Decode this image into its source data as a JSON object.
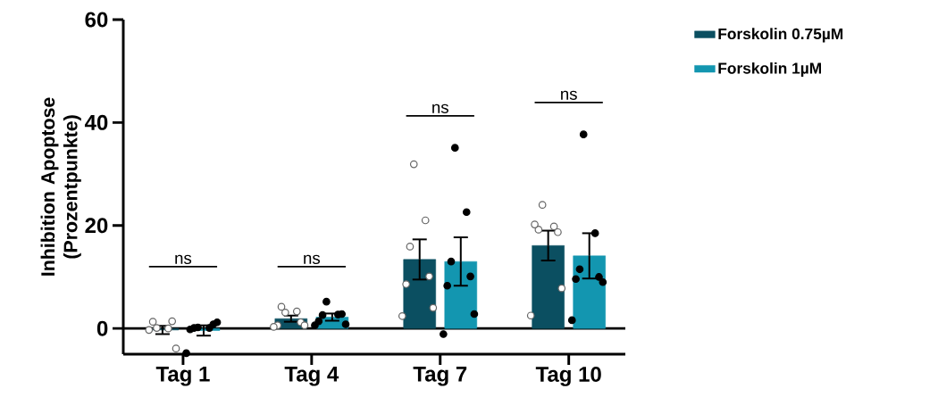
{
  "chart_data": {
    "type": "bar",
    "ylabel": "Inhibition Apoptose (Prozentpunkte)",
    "categories": [
      "Tag 1",
      "Tag 4",
      "Tag 7",
      "Tag 10"
    ],
    "ylim": [
      -5,
      60
    ],
    "yticks": [
      0,
      20,
      40,
      60
    ],
    "legend": "top right",
    "series": [
      {
        "name": "Forskolin 0.75µM",
        "color": "#0b4f61",
        "values": [
          -0.3,
          1.9,
          13.4,
          16.1
        ],
        "errors": [
          0.8,
          0.6,
          3.9,
          2.9
        ]
      },
      {
        "name": "Forskolin 1µM",
        "color": "#1396b0",
        "values": [
          -0.4,
          2.2,
          13.0,
          14.1
        ],
        "errors": [
          1.0,
          0.7,
          4.7,
          4.4
        ]
      },
      {
        "type": "scatter",
        "color": "#ffffff",
        "marker": "circle",
        "x": [
          "Tag 1",
          "Tag 1",
          "Tag 1",
          "Tag 1",
          "Tag 1",
          "Tag 1",
          "Tag 4",
          "Tag 4",
          "Tag 4",
          "Tag 4",
          "Tag 4",
          "Tag 4",
          "Tag 4",
          "Tag 7",
          "Tag 7",
          "Tag 7",
          "Tag 7",
          "Tag 7",
          "Tag 7",
          "Tag 7",
          "Tag 10",
          "Tag 10",
          "Tag 10",
          "Tag 10",
          "Tag 10",
          "Tag 10",
          "Tag 10"
        ],
        "values": [
          0.1,
          0.0,
          1.3,
          1.4,
          -0.3,
          -3.9,
          3.1,
          3.3,
          4.2,
          1.2,
          0.6,
          0.6,
          0.3,
          31.9,
          21.0,
          15.9,
          10.1,
          8.6,
          4.0,
          2.4,
          24.0,
          19.8,
          19.2,
          18.7,
          20.2,
          7.8,
          2.5
        ]
      },
      {
        "type": "scatter",
        "color": "#000000",
        "marker": "circle",
        "x": [
          "Tag 1",
          "Tag 1",
          "Tag 1",
          "Tag 1",
          "Tag 1",
          "Tag 1",
          "Tag 1",
          "Tag 4",
          "Tag 4",
          "Tag 4",
          "Tag 4",
          "Tag 4",
          "Tag 4",
          "Tag 4",
          "Tag 7",
          "Tag 7",
          "Tag 7",
          "Tag 7",
          "Tag 7",
          "Tag 7",
          "Tag 7",
          "Tag 10",
          "Tag 10",
          "Tag 10",
          "Tag 10",
          "Tag 10",
          "Tag 10",
          "Tag 10"
        ],
        "values": [
          0.2,
          0.1,
          0.1,
          0.8,
          -0.2,
          1.2,
          -4.8,
          5.2,
          2.7,
          2.6,
          2.8,
          1.4,
          0.8,
          0.6,
          35.1,
          22.6,
          13.0,
          10.1,
          8.3,
          2.8,
          -1.1,
          37.7,
          18.5,
          11.5,
          10.0,
          9.6,
          9.0,
          1.6
        ]
      }
    ],
    "ref_lines": [
      {
        "axis": "y",
        "value": 0,
        "color": "#000000"
      }
    ],
    "annotations": [
      "ns",
      "ns",
      "ns",
      "ns"
    ]
  }
}
